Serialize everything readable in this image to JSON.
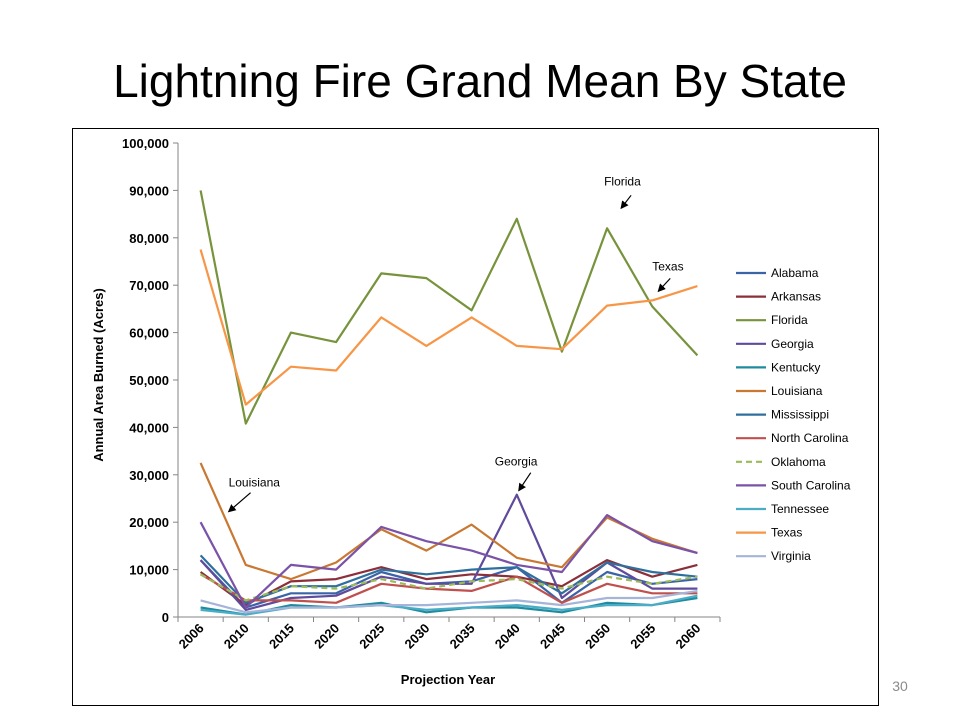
{
  "slide": {
    "title": "Lightning Fire Grand Mean By State",
    "page_number": "30"
  },
  "chart_data": {
    "type": "line",
    "title": "",
    "xlabel": "Projection Year",
    "ylabel": "Annual Area Burned (Acres)",
    "x": [
      "2006",
      "2010",
      "2015",
      "2020",
      "2025",
      "2030",
      "2035",
      "2040",
      "2045",
      "2050",
      "2055",
      "2060"
    ],
    "ylim": [
      0,
      100000
    ],
    "y_ticks": [
      "0",
      "10,000",
      "20,000",
      "30,000",
      "40,000",
      "50,000",
      "60,000",
      "70,000",
      "80,000",
      "90,000",
      "100,000"
    ],
    "grid": false,
    "legend": "right",
    "series": [
      {
        "name": "Alabama",
        "color": "#3a63a8",
        "dash": false,
        "values": [
          12000,
          2000,
          5000,
          5000,
          9500,
          7000,
          7500,
          10500,
          3000,
          9500,
          7000,
          8000
        ]
      },
      {
        "name": "Arkansas",
        "color": "#8b2f3a",
        "dash": false,
        "values": [
          9500,
          2500,
          7500,
          8000,
          10500,
          8000,
          9000,
          8500,
          6500,
          12000,
          8500,
          11000
        ]
      },
      {
        "name": "Florida",
        "color": "#77933c",
        "dash": false,
        "values": [
          90000,
          40800,
          60000,
          58000,
          72500,
          71500,
          64700,
          84000,
          56000,
          82000,
          65500,
          55200
        ]
      },
      {
        "name": "Georgia",
        "color": "#604a9b",
        "dash": false,
        "values": [
          12000,
          1500,
          4000,
          4500,
          8500,
          7000,
          7000,
          25800,
          4000,
          11500,
          6000,
          6000
        ]
      },
      {
        "name": "Kentucky",
        "color": "#1f8b9e",
        "dash": false,
        "values": [
          2000,
          500,
          2500,
          2000,
          3000,
          1000,
          2000,
          2000,
          1000,
          3000,
          2500,
          4000
        ]
      },
      {
        "name": "Louisiana",
        "color": "#c87832",
        "dash": false,
        "values": [
          32500,
          11000,
          8000,
          11500,
          18500,
          14000,
          19500,
          12500,
          10500,
          21000,
          16500,
          13500
        ]
      },
      {
        "name": "Mississippi",
        "color": "#2f6f9e",
        "dash": false,
        "values": [
          13000,
          3000,
          6500,
          6500,
          10000,
          9000,
          10000,
          10500,
          5000,
          11500,
          9500,
          8500
        ]
      },
      {
        "name": "North Carolina",
        "color": "#c0504d",
        "dash": false,
        "values": [
          9000,
          3500,
          3500,
          3000,
          7000,
          6000,
          5500,
          8500,
          3000,
          7000,
          5000,
          5000
        ]
      },
      {
        "name": "Oklahoma",
        "color": "#9bbb59",
        "dash": true,
        "values": [
          9000,
          3500,
          6500,
          6000,
          8000,
          6000,
          7500,
          8000,
          6000,
          8500,
          7000,
          8500
        ]
      },
      {
        "name": "South Carolina",
        "color": "#7a52a8",
        "dash": false,
        "values": [
          20000,
          2000,
          11000,
          10000,
          19000,
          16000,
          14000,
          11000,
          9500,
          21500,
          16000,
          13500
        ]
      },
      {
        "name": "Tennessee",
        "color": "#4bacc6",
        "dash": false,
        "values": [
          1500,
          500,
          2000,
          2000,
          2500,
          1500,
          2000,
          2500,
          1500,
          2500,
          2500,
          4500
        ]
      },
      {
        "name": "Texas",
        "color": "#f79646",
        "dash": false,
        "values": [
          77500,
          44800,
          52800,
          52000,
          63200,
          57200,
          63200,
          57200,
          56500,
          65700,
          66800,
          69800
        ]
      },
      {
        "name": "Virginia",
        "color": "#a5b4d8",
        "dash": false,
        "values": [
          3500,
          1000,
          2000,
          2000,
          2500,
          2500,
          3000,
          3500,
          2500,
          4000,
          4000,
          5500
        ]
      }
    ],
    "annotations": [
      {
        "text": "Florida",
        "x": "2050",
        "y": 82000
      },
      {
        "text": "Texas",
        "x": "2055",
        "y": 66800
      },
      {
        "text": "Louisiana",
        "x": "2006",
        "y": 22000
      },
      {
        "text": "Georgia",
        "x": "2040",
        "y": 25800
      }
    ]
  }
}
